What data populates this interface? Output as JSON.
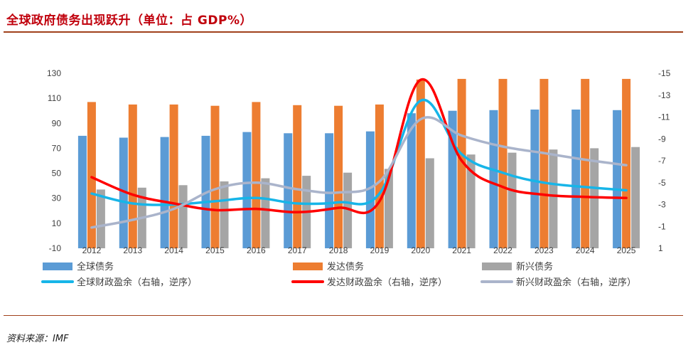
{
  "page": {
    "title": "全球政府债务出现跃升（单位：占 GDP%）",
    "source": "资料来源：IMF"
  },
  "colors": {
    "global_debt": "#5b9bd5",
    "developed_debt": "#ed7d31",
    "emerging_debt": "#a5a5a5",
    "global_balance": "#17b5e8",
    "developed_balance": "#ff0000",
    "emerging_balance": "#aab4cb",
    "accent": "#c0000c"
  },
  "chart_data": {
    "type": "bar",
    "title": "全球政府债务出现跃升（单位：占 GDP%）",
    "categories": [
      "2012",
      "2013",
      "2014",
      "2015",
      "2016",
      "2017",
      "2018",
      "2019",
      "2020",
      "2021",
      "2022",
      "2023",
      "2024",
      "2025"
    ],
    "y_left": {
      "min": -10,
      "max": 130,
      "ticks": [
        "130",
        "110",
        "90",
        "70",
        "50",
        "30",
        "10",
        "-10"
      ]
    },
    "y_right": {
      "min": -15,
      "max": 1,
      "inverted": true,
      "ticks": [
        "-15",
        "-13",
        "-11",
        "-9",
        "-7",
        "-5",
        "-3",
        "-1",
        "1"
      ]
    },
    "bar_series": [
      {
        "name": "全球债务",
        "color_key": "global_debt",
        "values": [
          80,
          78.5,
          79,
          80,
          83,
          82,
          82,
          83.5,
          98,
          100,
          100.5,
          101,
          101,
          100.5
        ]
      },
      {
        "name": "发达债务",
        "color_key": "developed_debt",
        "values": [
          107,
          105,
          105,
          104,
          107,
          104.5,
          104,
          105,
          125,
          125.5,
          125.5,
          125.5,
          125.5,
          125.5
        ]
      },
      {
        "name": "新兴债务",
        "color_key": "emerging_debt",
        "values": [
          37,
          38.5,
          40.5,
          43.5,
          46,
          48,
          50.5,
          53.5,
          62,
          65,
          66.5,
          69,
          70,
          71
        ]
      }
    ],
    "line_series": [
      {
        "name": "全球财政盈余（右轴，逆序）",
        "color_key": "global_balance",
        "axis": "right",
        "values": [
          -4,
          -3.1,
          -3.0,
          -3.3,
          -3.6,
          -3.1,
          -3.2,
          -4.0,
          -12.5,
          -7.6,
          -5.9,
          -5.0,
          -4.6,
          -4.3
        ]
      },
      {
        "name": "发达财政盈余（右轴，逆序）",
        "color_key": "developed_balance",
        "axis": "right",
        "values": [
          -5.5,
          -3.9,
          -3.1,
          -2.5,
          -2.6,
          -2.3,
          -2.7,
          -3.3,
          -14.4,
          -7.0,
          -4.6,
          -3.9,
          -3.7,
          -3.6
        ]
      },
      {
        "name": "新兴财政盈余（右轴，逆序）",
        "color_key": "emerging_balance",
        "axis": "right",
        "values": [
          -0.9,
          -1.6,
          -2.6,
          -4.4,
          -5.0,
          -4.4,
          -4.1,
          -5.1,
          -10.8,
          -9.3,
          -8.3,
          -7.7,
          -7.1,
          -6.6
        ]
      }
    ],
    "legend_position": "bottom"
  }
}
